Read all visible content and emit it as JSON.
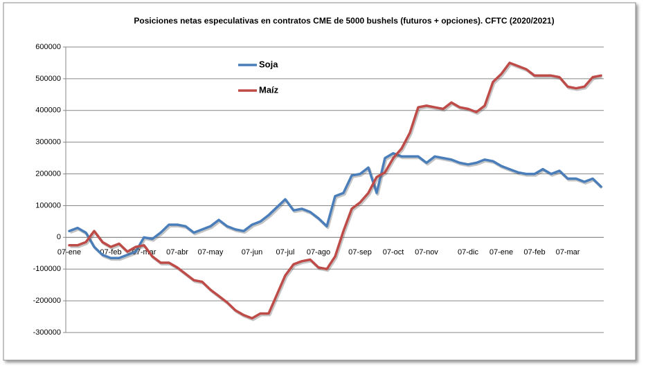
{
  "chart_data": {
    "type": "line",
    "title": "Posiciones netas especulativas en contratos CME de 5000  bushels (futuros + opciones). CFTC (2020/2021)",
    "categories": [
      "07-ene",
      null,
      null,
      null,
      null,
      "07-feb",
      null,
      null,
      null,
      "07-mar",
      null,
      null,
      null,
      "07-abr",
      null,
      null,
      null,
      "07-may",
      null,
      null,
      null,
      null,
      "07-jun",
      null,
      null,
      null,
      "07-jul",
      null,
      null,
      null,
      "07-ago",
      null,
      null,
      null,
      null,
      "07-sep",
      null,
      null,
      null,
      "07-oct",
      null,
      null,
      null,
      "07-nov",
      null,
      null,
      null,
      null,
      "07-dic",
      null,
      null,
      null,
      "07-ene",
      null,
      null,
      null,
      "07-feb",
      null,
      null,
      null,
      "07-mar",
      null,
      null,
      null,
      null
    ],
    "series": [
      {
        "name": "Soja",
        "color": "#4a7ebb",
        "values": [
          20000,
          30000,
          15000,
          -30000,
          -55000,
          -65000,
          -65000,
          -55000,
          -45000,
          0,
          -5000,
          15000,
          40000,
          40000,
          35000,
          15000,
          25000,
          35000,
          55000,
          35000,
          25000,
          20000,
          40000,
          50000,
          70000,
          95000,
          120000,
          85000,
          90000,
          80000,
          60000,
          35000,
          130000,
          140000,
          195000,
          200000,
          220000,
          140000,
          250000,
          265000,
          255000,
          255000,
          255000,
          235000,
          255000,
          250000,
          245000,
          235000,
          230000,
          235000,
          245000,
          240000,
          225000,
          215000,
          205000,
          200000,
          200000,
          215000,
          200000,
          210000,
          185000,
          185000,
          175000,
          185000,
          160000
        ]
      },
      {
        "name": "Maíz",
        "color": "#be4b48",
        "values": [
          -25000,
          -25000,
          -15000,
          20000,
          -15000,
          -30000,
          -20000,
          -45000,
          -30000,
          -25000,
          -60000,
          -80000,
          -80000,
          -95000,
          -115000,
          -135000,
          -140000,
          -165000,
          -185000,
          -205000,
          -230000,
          -245000,
          -255000,
          -240000,
          -240000,
          -180000,
          -120000,
          -85000,
          -75000,
          -70000,
          -95000,
          -100000,
          -60000,
          20000,
          90000,
          110000,
          140000,
          190000,
          205000,
          250000,
          280000,
          330000,
          410000,
          415000,
          410000,
          405000,
          425000,
          410000,
          405000,
          395000,
          415000,
          490000,
          515000,
          550000,
          540000,
          530000,
          510000,
          510000,
          510000,
          505000,
          475000,
          470000,
          475000,
          505000,
          510000
        ]
      }
    ],
    "ylim": [
      -300000,
      600000
    ],
    "yticks": [
      -300000,
      -200000,
      -100000,
      0,
      100000,
      200000,
      300000,
      400000,
      500000,
      600000
    ],
    "grid": true
  }
}
